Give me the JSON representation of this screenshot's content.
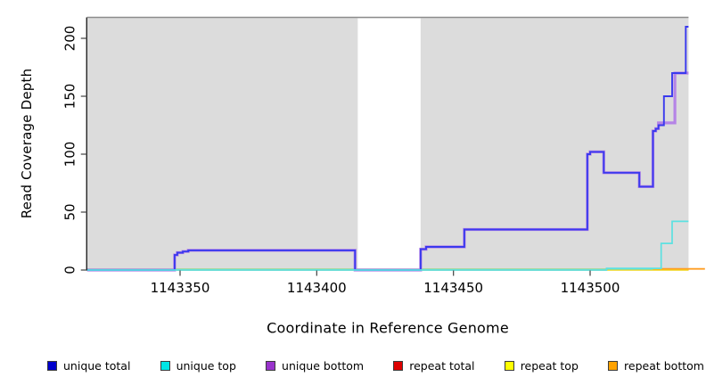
{
  "chart_data": {
    "type": "line",
    "subtype": "step-coverage-plot",
    "xlabel": "Coordinate in Reference Genome",
    "ylabel": "Read Coverage Depth",
    "x_ticks": [
      1143350,
      1143400,
      1143450,
      1143500
    ],
    "y_ticks": [
      0,
      50,
      100,
      150,
      200
    ],
    "xlim": [
      1143316,
      1143536
    ],
    "ylim": [
      0,
      218
    ],
    "grid": "off",
    "panel_bg_color": "#dcdcdc",
    "panel_top_border_color": "#8c8c8c",
    "white_gap_region_x": [
      1143415,
      1143438
    ],
    "baseline_blend_color": "#99d68f",
    "baseline_blend_x": [
      1143316,
      1143523
    ],
    "series": [
      {
        "name": "repeat total",
        "color": "#dd0000",
        "points": [
          [
            1143316,
            0
          ],
          [
            1143536,
            0
          ]
        ]
      },
      {
        "name": "repeat top",
        "color": "#f2f20c",
        "points": [
          [
            1143316,
            0
          ],
          [
            1143536,
            0
          ]
        ]
      },
      {
        "name": "repeat bottom",
        "color": "#ff9d23",
        "points": [
          [
            1143523,
            1
          ],
          [
            1143542,
            1
          ]
        ]
      },
      {
        "name": "unique bottom",
        "color": "#b584e6",
        "points": [
          [
            1143316,
            0
          ],
          [
            1143348,
            13
          ],
          [
            1143349,
            15
          ],
          [
            1143351,
            16
          ],
          [
            1143353,
            17
          ],
          [
            1143414,
            0
          ],
          [
            1143438,
            18
          ],
          [
            1143440,
            20
          ],
          [
            1143454,
            35
          ],
          [
            1143499,
            100
          ],
          [
            1143500,
            102
          ],
          [
            1143505,
            84
          ],
          [
            1143518,
            72
          ],
          [
            1143523,
            120
          ],
          [
            1143524,
            122
          ],
          [
            1143525,
            127
          ],
          [
            1143531,
            170
          ],
          [
            1143536,
            170
          ]
        ]
      },
      {
        "name": "unique total",
        "color": "#3a3aee",
        "points": [
          [
            1143316,
            0
          ],
          [
            1143348,
            13
          ],
          [
            1143349,
            15
          ],
          [
            1143351,
            16
          ],
          [
            1143353,
            17
          ],
          [
            1143414,
            0
          ],
          [
            1143438,
            18
          ],
          [
            1143440,
            20
          ],
          [
            1143454,
            35
          ],
          [
            1143499,
            100
          ],
          [
            1143500,
            102
          ],
          [
            1143505,
            84
          ],
          [
            1143518,
            72
          ],
          [
            1143523,
            120
          ],
          [
            1143524,
            122
          ],
          [
            1143525,
            125
          ],
          [
            1143527,
            150
          ],
          [
            1143530,
            170
          ],
          [
            1143535,
            210
          ],
          [
            1143536,
            210
          ]
        ]
      },
      {
        "name": "unique top",
        "color": "#5ce1e1",
        "points": [
          [
            1143316,
            0
          ],
          [
            1143506,
            1.5
          ],
          [
            1143526,
            23
          ],
          [
            1143530,
            42
          ],
          [
            1143536,
            42
          ]
        ]
      }
    ],
    "legend": [
      {
        "label": "unique total",
        "color": "#0000cc"
      },
      {
        "label": "unique top",
        "color": "#00e6e6"
      },
      {
        "label": "unique bottom",
        "color": "#9933cc"
      },
      {
        "label": "repeat total",
        "color": "#dd0000"
      },
      {
        "label": "repeat top",
        "color": "#ffff00"
      },
      {
        "label": "repeat bottom",
        "color": "#ffa200"
      }
    ]
  }
}
